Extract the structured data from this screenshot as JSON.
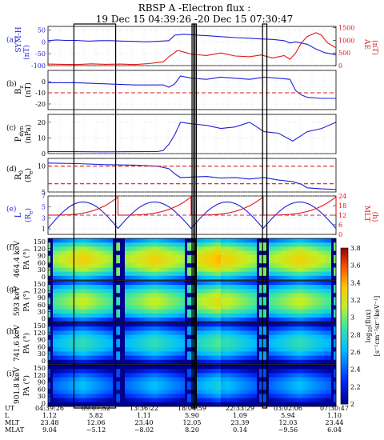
{
  "title_line1": "RBSP A -Electron flux :",
  "title_line2": "19 Dec 15 04:39:26 -20 Dec 15 07:30:47",
  "colors": {
    "blue": "#1f1fd8",
    "red": "#e01818",
    "grid": "#c8c8c8"
  },
  "chart_data": [
    {
      "type": "line",
      "panel": "a",
      "letter": "(a)",
      "ylabel_left": "SYM-H",
      "ylabel_left_unit": "(nT)",
      "ylabel_right": "AE",
      "ylabel_right_unit": "(nT)",
      "ylim_left": [
        -100,
        65
      ],
      "yticks_left": [
        50,
        0,
        -50,
        -100
      ],
      "ylim_right": [
        0,
        1550
      ],
      "yticks_right": [
        1500,
        1000,
        500,
        0
      ],
      "series": [
        {
          "axis": "left",
          "color": "blue",
          "x": [
            0,
            0.03,
            0.06,
            0.1,
            0.14,
            0.18,
            0.22,
            0.26,
            0.3,
            0.34,
            0.38,
            0.42,
            0.44,
            0.47,
            0.5,
            0.55,
            0.6,
            0.65,
            0.7,
            0.74,
            0.78,
            0.82,
            0.84,
            0.86,
            0.9,
            0.93,
            0.96,
            1.0
          ],
          "values": [
            5,
            8,
            6,
            6,
            3,
            5,
            5,
            3,
            2,
            0,
            2,
            5,
            28,
            32,
            30,
            26,
            22,
            18,
            15,
            12,
            10,
            5,
            -5,
            0,
            -10,
            -30,
            -45,
            -55
          ]
        },
        {
          "axis": "right",
          "color": "red",
          "x": [
            0,
            0.05,
            0.1,
            0.15,
            0.2,
            0.25,
            0.3,
            0.35,
            0.4,
            0.42,
            0.45,
            0.5,
            0.55,
            0.6,
            0.65,
            0.7,
            0.74,
            0.78,
            0.82,
            0.84,
            0.86,
            0.88,
            0.9,
            0.93,
            0.95,
            0.97,
            1.0
          ],
          "values": [
            60,
            50,
            40,
            70,
            50,
            60,
            40,
            80,
            150,
            350,
            600,
            450,
            400,
            500,
            380,
            350,
            420,
            300,
            400,
            250,
            500,
            900,
            1150,
            1300,
            1200,
            900,
            700
          ]
        }
      ]
    },
    {
      "type": "line",
      "panel": "b",
      "letter": "(b)",
      "ylabel": "B",
      "ylabel_sub": "z",
      "ylabel_unit": "(nT)",
      "ylim": [
        -25,
        10
      ],
      "yticks": [
        0,
        -10,
        -20
      ],
      "series": [
        {
          "color": "blue",
          "x": [
            0,
            0.1,
            0.2,
            0.3,
            0.4,
            0.42,
            0.44,
            0.46,
            0.5,
            0.55,
            0.6,
            0.65,
            0.7,
            0.75,
            0.8,
            0.84,
            0.86,
            0.88,
            0.9,
            0.95,
            1.0
          ],
          "values": [
            -1,
            -1,
            -2,
            -3,
            -3,
            -5,
            -2,
            5,
            3,
            2,
            4,
            3,
            2,
            4,
            3,
            2,
            -8,
            -12,
            -14,
            -15,
            -15
          ]
        },
        {
          "color": "red",
          "dash": true,
          "x": [
            0,
            1
          ],
          "values": [
            -10,
            -10
          ]
        }
      ]
    },
    {
      "type": "line",
      "panel": "c",
      "letter": "(c)",
      "ylabel": "P",
      "ylabel_sub": "dyn",
      "ylabel_unit": "(nPa)",
      "ylim": [
        0,
        25
      ],
      "yticks": [
        20,
        10,
        0
      ],
      "series": [
        {
          "color": "blue",
          "x": [
            0,
            0.1,
            0.2,
            0.3,
            0.38,
            0.4,
            0.42,
            0.44,
            0.46,
            0.5,
            0.55,
            0.6,
            0.65,
            0.7,
            0.75,
            0.8,
            0.85,
            0.9,
            0.95,
            1.0
          ],
          "values": [
            1.2,
            1.2,
            1.1,
            1.2,
            1.3,
            2,
            6,
            12,
            20,
            19,
            18,
            16,
            17,
            20,
            14,
            13,
            8,
            14,
            16,
            20
          ]
        }
      ]
    },
    {
      "type": "line",
      "panel": "d",
      "letter": "(d)",
      "ylabel": "R",
      "ylabel_sub": "0",
      "ylabel_unit": "(R",
      "ylabel_unit_sub": "e",
      "ylabel_unit_close": ")",
      "ylim": [
        5,
        11.5
      ],
      "yticks": [
        10,
        5
      ],
      "series": [
        {
          "color": "blue",
          "x": [
            0,
            0.1,
            0.2,
            0.3,
            0.38,
            0.42,
            0.44,
            0.46,
            0.5,
            0.55,
            0.6,
            0.65,
            0.7,
            0.75,
            0.8,
            0.85,
            0.88,
            0.9,
            0.95,
            1.0
          ],
          "values": [
            10.6,
            10.5,
            10.3,
            10.2,
            10.0,
            9.5,
            8.5,
            7.8,
            7.9,
            8.0,
            7.7,
            7.8,
            7.5,
            7.8,
            7.3,
            7.0,
            6.5,
            5.8,
            5.6,
            5.5
          ]
        },
        {
          "color": "red",
          "dash": true,
          "x": [
            0,
            1
          ],
          "values": [
            10,
            10
          ]
        },
        {
          "color": "red",
          "dash": true,
          "x": [
            0,
            1
          ],
          "values": [
            6.6,
            6.6
          ]
        }
      ]
    },
    {
      "type": "line",
      "panel": "e",
      "letter": "(e)",
      "ylabel": "L",
      "ylabel_unit": "(R",
      "ylabel_unit_sub": "e",
      "ylabel_unit_close": ")",
      "ylabel_right": "MLT",
      "ylabel_right_unit": "(h)",
      "ylim_left": [
        0,
        7
      ],
      "yticks_left": [
        7,
        5,
        3,
        1
      ],
      "ylim_right": [
        0,
        24
      ],
      "yticks_right": [
        24,
        18,
        12,
        6,
        0
      ],
      "orbit_boundaries": [
        0,
        0.243,
        0.497,
        0.747,
        1.0
      ],
      "L_perigee": 1.1,
      "L_apogee": 5.9,
      "mlt_min": 12.05,
      "mlt_max": 23.45,
      "dash_blue_L": 3.5,
      "dash_red_mlt": 12
    },
    {
      "type": "heatmap",
      "panel": "f",
      "letter": "(f)",
      "energy": "464.4 keV",
      "ylabel": "PA (°)",
      "yticks": [
        150,
        120,
        90,
        60,
        30,
        0
      ],
      "level": 3.3
    },
    {
      "type": "heatmap",
      "panel": "g",
      "letter": "(g)",
      "energy": "593 keV",
      "ylabel": "PA (°)",
      "yticks": [
        150,
        120,
        90,
        60,
        30,
        0
      ],
      "level": 3.15
    },
    {
      "type": "heatmap",
      "panel": "h",
      "letter": "(h)",
      "energy": "741.6 keV",
      "ylabel": "PA (°)",
      "yticks": [
        150,
        120,
        90,
        60,
        30,
        0
      ],
      "level": 2.85
    },
    {
      "type": "heatmap",
      "panel": "i",
      "letter": "(i)",
      "energy": "901.8 keV",
      "ylabel": "PA (°)",
      "yticks": [
        150,
        120,
        90,
        60,
        30,
        0
      ],
      "level": 2.65
    }
  ],
  "colorbar": {
    "label_main": "log",
    "label_sub": "10",
    "label_rest": "(flux)",
    "label_units": "[s⁻¹cm⁻²sr⁻¹keV⁻¹]",
    "min": 2.0,
    "max": 3.8,
    "ticks": [
      "3.8",
      "3.6",
      "3.4",
      "3.2",
      "3",
      "2.8",
      "2.6",
      "2.4",
      "2.2",
      "2"
    ]
  },
  "time_axis": {
    "row_labels": [
      "UT",
      "L",
      "MLT",
      "MLAT"
    ],
    "columns": [
      {
        "x": 0.0,
        "ut": "04:39:26",
        "l": "1.12",
        "mlt": "23.48",
        "mlat": "9.04"
      },
      {
        "x": 0.1667,
        "ut": "09:07:52",
        "l": "5.82",
        "mlt": "12.06",
        "mlat": "−5.12"
      },
      {
        "x": 0.3333,
        "ut": "13:36:22",
        "l": "1.11",
        "mlt": "23.40",
        "mlat": "−8.02"
      },
      {
        "x": 0.5,
        "ut": "18:04:59",
        "l": "5.90",
        "mlt": "12.05",
        "mlat": "8.20"
      },
      {
        "x": 0.6667,
        "ut": "22:33:29",
        "l": "1.09",
        "mlt": "23.39",
        "mlat": "0.14"
      },
      {
        "x": 0.8333,
        "ut": "03:02:06",
        "l": "5.94",
        "mlt": "12.03",
        "mlat": "−9.56"
      },
      {
        "x": 1.0,
        "ut": "07:30:47",
        "l": "1.10",
        "mlt": "23.44",
        "mlat": "6.04"
      }
    ]
  },
  "highlight_boxes": [
    [
      0.09,
      0.235
    ],
    [
      0.5,
      0.51
    ],
    [
      0.505,
      0.515
    ],
    [
      0.745,
      0.76
    ]
  ]
}
